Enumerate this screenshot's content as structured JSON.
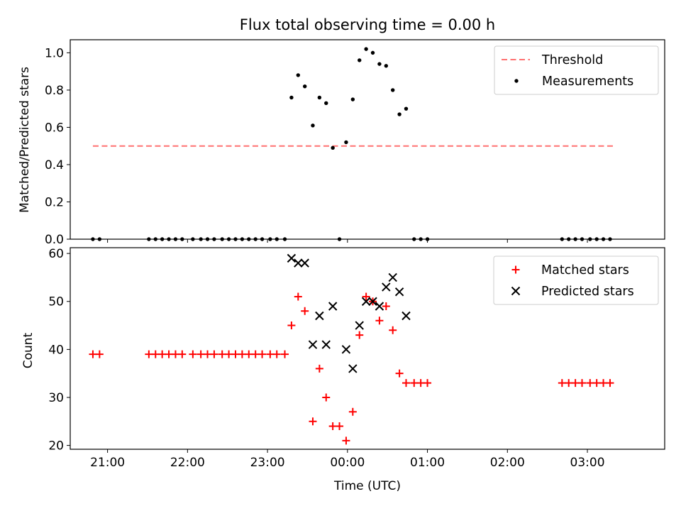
{
  "chart_data": [
    {
      "type": "scatter",
      "title": "Flux total observing time = 0.00 h",
      "xlabel": "",
      "ylabel": "Matched/Predicted stars",
      "xlim": [
        "20:32",
        "03:58"
      ],
      "ylim": [
        0.0,
        1.07
      ],
      "x_tick_labels": [
        "21:00",
        "22:00",
        "23:00",
        "00:00",
        "01:00",
        "02:00",
        "03:00"
      ],
      "y_ticks": [
        0.0,
        0.2,
        0.4,
        0.6,
        0.8,
        1.0
      ],
      "y_tick_labels": [
        "0.0",
        "0.2",
        "0.4",
        "0.6",
        "0.8",
        "1.0"
      ],
      "legend": {
        "placement": "top-right",
        "entries": [
          "Threshold",
          "Measurements"
        ]
      },
      "series": [
        {
          "name": "Threshold",
          "style": "dashed-line",
          "color": "#ff7070",
          "x": [
            "20:49",
            "03:20"
          ],
          "values": [
            0.5,
            0.5
          ]
        },
        {
          "name": "Measurements",
          "style": "dot",
          "color": "#000000",
          "x": [
            "20:49",
            "20:54",
            "21:31",
            "21:36",
            "21:41",
            "21:46",
            "21:51",
            "21:56",
            "22:04",
            "22:10",
            "22:15",
            "22:20",
            "22:26",
            "22:31",
            "22:36",
            "22:41",
            "22:46",
            "22:51",
            "22:56",
            "23:02",
            "23:07",
            "23:13",
            "23:18",
            "23:23",
            "23:28",
            "23:34",
            "23:39",
            "23:44",
            "23:49",
            "23:54",
            "23:59",
            "00:04",
            "00:09",
            "00:14",
            "00:19",
            "00:24",
            "00:29",
            "00:34",
            "00:39",
            "00:44",
            "00:50",
            "00:55",
            "01:00",
            "02:41",
            "02:46",
            "02:51",
            "02:56",
            "03:02",
            "03:07",
            "03:12",
            "03:17"
          ],
          "values": [
            0,
            0,
            0,
            0,
            0,
            0,
            0,
            0,
            0,
            0,
            0,
            0,
            0,
            0,
            0,
            0,
            0,
            0,
            0,
            0,
            0,
            0,
            0.76,
            0.88,
            0.82,
            0.61,
            0.76,
            0.73,
            0.49,
            0.0,
            0.52,
            0.75,
            0.96,
            1.02,
            1.0,
            0.94,
            0.93,
            0.8,
            0.67,
            0.7,
            0,
            0,
            0,
            0,
            0,
            0,
            0,
            0,
            0,
            0,
            0
          ]
        }
      ]
    },
    {
      "type": "scatter",
      "title": "",
      "xlabel": "Time (UTC)",
      "ylabel": "Count",
      "xlim": [
        "20:32",
        "03:58"
      ],
      "ylim": [
        19.2,
        61.2
      ],
      "x_tick_labels": [
        "21:00",
        "22:00",
        "23:00",
        "00:00",
        "01:00",
        "02:00",
        "03:00"
      ],
      "y_ticks": [
        20,
        30,
        40,
        50,
        60
      ],
      "y_tick_labels": [
        "20",
        "30",
        "40",
        "50",
        "60"
      ],
      "legend": {
        "placement": "top-right",
        "entries": [
          "Matched stars",
          "Predicted stars"
        ]
      },
      "series": [
        {
          "name": "Matched stars",
          "marker": "plus",
          "color": "#ff0000",
          "x": [
            "20:49",
            "20:54",
            "21:31",
            "21:36",
            "21:41",
            "21:46",
            "21:51",
            "21:56",
            "22:04",
            "22:10",
            "22:15",
            "22:20",
            "22:26",
            "22:31",
            "22:36",
            "22:41",
            "22:46",
            "22:51",
            "22:56",
            "23:02",
            "23:07",
            "23:13",
            "23:18",
            "23:23",
            "23:28",
            "23:34",
            "23:39",
            "23:44",
            "23:49",
            "23:54",
            "23:59",
            "00:04",
            "00:09",
            "00:14",
            "00:19",
            "00:24",
            "00:29",
            "00:34",
            "00:39",
            "00:44",
            "00:50",
            "00:55",
            "01:00",
            "02:41",
            "02:46",
            "02:51",
            "02:56",
            "03:02",
            "03:07",
            "03:12",
            "03:17"
          ],
          "values": [
            39,
            39,
            39,
            39,
            39,
            39,
            39,
            39,
            39,
            39,
            39,
            39,
            39,
            39,
            39,
            39,
            39,
            39,
            39,
            39,
            39,
            39,
            45,
            51,
            48,
            25,
            36,
            30,
            24,
            24,
            21,
            27,
            43,
            51,
            50,
            46,
            49,
            44,
            35,
            33,
            33,
            33,
            33,
            33,
            33,
            33,
            33,
            33,
            33,
            33,
            33
          ]
        },
        {
          "name": "Predicted stars",
          "marker": "x",
          "color": "#000000",
          "x": [
            "23:18",
            "23:23",
            "23:28",
            "23:34",
            "23:39",
            "23:44",
            "23:49",
            "23:59",
            "00:04",
            "00:09",
            "00:14",
            "00:19",
            "00:24",
            "00:29",
            "00:34",
            "00:39",
            "00:44"
          ],
          "values": [
            59,
            58,
            58,
            41,
            47,
            41,
            49,
            40,
            36,
            45,
            50,
            50,
            49,
            53,
            55,
            52,
            47
          ]
        }
      ]
    }
  ]
}
